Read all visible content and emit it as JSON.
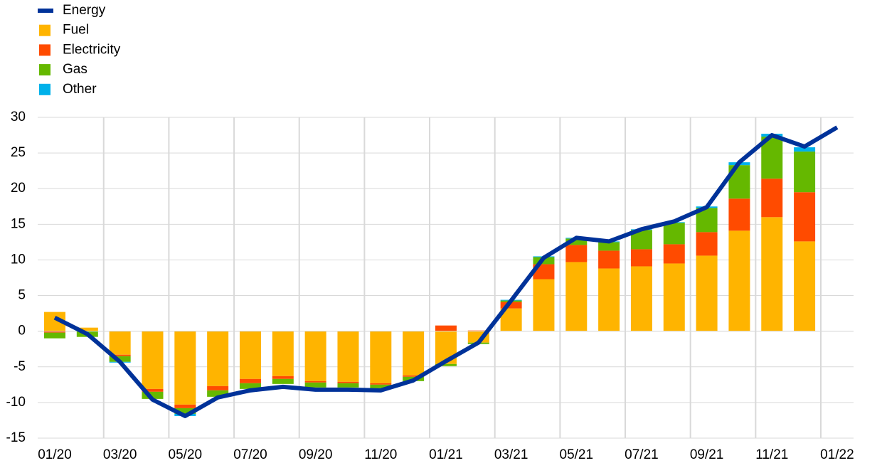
{
  "chart_data": {
    "type": "combo",
    "categories": [
      "01/20",
      null,
      "03/20",
      null,
      "05/20",
      null,
      "07/20",
      null,
      "09/20",
      null,
      "11/20",
      null,
      "01/21",
      null,
      "03/21",
      null,
      "05/21",
      null,
      "07/21",
      null,
      "09/21",
      null,
      "11/21",
      null,
      "01/22"
    ],
    "series": [
      {
        "name": "Energy",
        "type": "line",
        "color": "#003299",
        "values": [
          1.9,
          -0.4,
          -4.3,
          -9.6,
          -11.9,
          -9.3,
          -8.3,
          -7.8,
          -8.2,
          -8.2,
          -8.3,
          -6.9,
          -4.2,
          -1.6,
          4.3,
          10.3,
          13.1,
          12.6,
          14.3,
          15.4,
          17.4,
          23.7,
          27.5,
          25.9,
          28.6
        ]
      },
      {
        "name": "Fuel",
        "type": "bar",
        "color": "#FFB400",
        "values": [
          2.7,
          0.5,
          -3.3,
          -8.1,
          -10.3,
          -7.7,
          -6.7,
          -6.3,
          -7.0,
          -7.1,
          -7.3,
          -6.2,
          -4.6,
          -1.6,
          3.2,
          7.3,
          9.7,
          8.8,
          9.1,
          9.5,
          10.6,
          14.1,
          16.0,
          12.6,
          null
        ]
      },
      {
        "name": "Electricity",
        "type": "bar",
        "color": "#FF4B00",
        "values": [
          -0.2,
          0,
          -0.2,
          -0.4,
          -0.5,
          -0.6,
          -0.6,
          -0.4,
          -0.2,
          -0.2,
          -0.2,
          -0.2,
          0.8,
          0.1,
          0.9,
          2.1,
          2.4,
          2.5,
          2.4,
          2.7,
          3.3,
          4.5,
          5.4,
          6.9,
          null
        ]
      },
      {
        "name": "Gas",
        "type": "bar",
        "color": "#65B800",
        "values": [
          -0.8,
          -0.8,
          -0.8,
          -1.0,
          -0.8,
          -0.9,
          -0.8,
          -0.7,
          -0.7,
          -0.6,
          -0.5,
          -0.6,
          -0.3,
          -0.2,
          0.2,
          1.0,
          0.9,
          1.2,
          2.7,
          3.0,
          3.4,
          4.7,
          5.9,
          5.7,
          null
        ]
      },
      {
        "name": "Other",
        "type": "bar",
        "color": "#00B1EA",
        "values": [
          0,
          0,
          -0.1,
          0,
          -0.3,
          0,
          0,
          0,
          0,
          0,
          0,
          0,
          0,
          0,
          0.1,
          0.1,
          0.1,
          0.1,
          0.1,
          0.1,
          0.2,
          0.4,
          0.4,
          0.6,
          null
        ]
      }
    ],
    "ylim": [
      -15,
      30
    ],
    "yticks": [
      -15,
      -10,
      -5,
      0,
      5,
      10,
      15,
      20,
      25,
      30
    ],
    "grid": true,
    "legend": "top-left"
  }
}
